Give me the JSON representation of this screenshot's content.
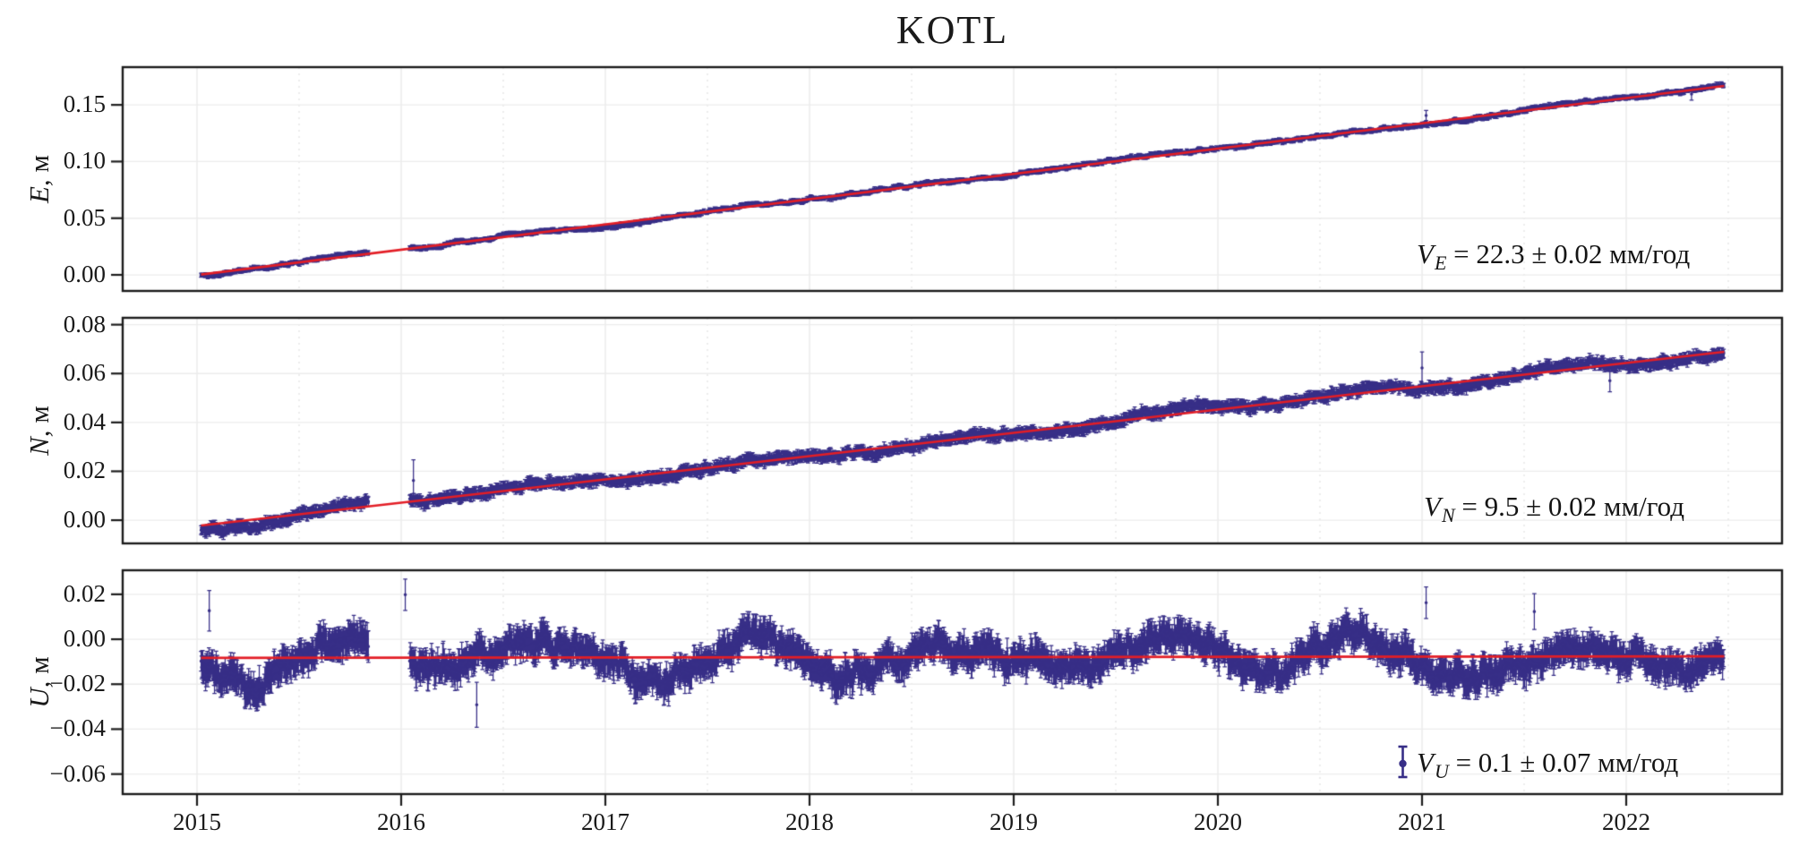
{
  "chart_data": {
    "type": "scatter",
    "title": "KOTL",
    "units_y": "м",
    "legend_position": "none",
    "grid": {
      "horizontal": true,
      "vertical_years": true,
      "vertical_half_years_dotted": true
    },
    "colors": {
      "data": "#372e87",
      "trend": "#e31e26",
      "grid_h": "#ececec",
      "grid_v": "#e6e6e6",
      "grid_v_dot": "#e2e2e2",
      "axis": "#1c1c1c"
    },
    "x": {
      "t_start": 2015.02,
      "t_end": 2022.48,
      "axis_min": 2014.64,
      "axis_max": 2022.76,
      "gap": [
        2015.84,
        2016.04
      ],
      "ticks": [
        {
          "v": 2015,
          "label": "2015"
        },
        {
          "v": 2016,
          "label": "2016"
        },
        {
          "v": 2017,
          "label": "2017"
        },
        {
          "v": 2018,
          "label": "2018"
        },
        {
          "v": 2019,
          "label": "2019"
        },
        {
          "v": 2020,
          "label": "2020"
        },
        {
          "v": 2021,
          "label": "2021"
        },
        {
          "v": 2022,
          "label": "2022"
        }
      ]
    },
    "panels": [
      {
        "component": "E",
        "ylabel": {
          "letter": "E,",
          "unit": " м"
        },
        "ylim": [
          -0.0142,
          0.1833
        ],
        "yticks": [
          {
            "v": 0.0,
            "label": "0.00"
          },
          {
            "v": 0.05,
            "label": "0.05"
          },
          {
            "v": 0.1,
            "label": "0.10"
          },
          {
            "v": 0.15,
            "label": "0.15"
          }
        ],
        "trend": {
          "start_value": 0.0003,
          "end_value": 0.1667
        },
        "velocity": {
          "var": "V",
          "sub": "E",
          "rest": " = 22.3 ± 0.02 мм/год",
          "value": 22.3,
          "sigma": 0.02,
          "units": "мм/год"
        },
        "noise": {
          "seasonal": 0.001,
          "lf": 0.0012,
          "white": 0.001,
          "err": 0.0016,
          "err_var": 0.0008,
          "seasonal_mod": 0
        },
        "outliers": [
          {
            "t": 2021.02,
            "dy": 0.0065,
            "err": 0.0045
          },
          {
            "t": 2022.32,
            "dy": -0.0035,
            "err": 0.0055
          }
        ],
        "seed": 101
      },
      {
        "component": "N",
        "ylabel": {
          "letter": "N,",
          "unit": " м"
        },
        "ylim": [
          -0.0095,
          0.0828
        ],
        "yticks": [
          {
            "v": 0.0,
            "label": "0.00"
          },
          {
            "v": 0.02,
            "label": "0.02"
          },
          {
            "v": 0.04,
            "label": "0.04"
          },
          {
            "v": 0.06,
            "label": "0.06"
          },
          {
            "v": 0.08,
            "label": "0.08"
          }
        ],
        "trend": {
          "start_value": -0.0022,
          "end_value": 0.0689
        },
        "velocity": {
          "var": "V",
          "sub": "N",
          "rest": " = 9.5 ± 0.02 мм/год",
          "value": 9.5,
          "sigma": 0.02,
          "units": "мм/год"
        },
        "noise": {
          "seasonal": 0.0013,
          "lf": 0.0014,
          "white": 0.0011,
          "err": 0.0018,
          "err_var": 0.0009,
          "seasonal_mod": 0
        },
        "outliers": [
          {
            "t": 2016.06,
            "dy": 0.0085,
            "err": 0.0085
          },
          {
            "t": 2021.0,
            "dy": 0.0075,
            "err": 0.0065
          },
          {
            "t": 2021.92,
            "dy": -0.0065,
            "err": 0.0045
          }
        ],
        "seed": 202
      },
      {
        "component": "U",
        "ylabel": {
          "letter": "U,",
          "unit": " м"
        },
        "ylim": [
          -0.0689,
          0.0307
        ],
        "yticks": [
          {
            "v": 0.02,
            "label": "0.02"
          },
          {
            "v": 0.0,
            "label": "0.00"
          },
          {
            "v": -0.02,
            "label": "−0.02"
          },
          {
            "v": -0.04,
            "label": "−0.04"
          },
          {
            "v": -0.06,
            "label": "−0.06"
          }
        ],
        "trend": {
          "start_value": -0.0083,
          "end_value": -0.0076
        },
        "velocity": {
          "var": "V",
          "sub": "U",
          "rest": " = 0.1 ± 0.07 мм/год",
          "value": 0.1,
          "sigma": 0.07,
          "units": "мм/год"
        },
        "noise": {
          "seasonal": 0.0072,
          "lf": 0.0034,
          "white": 0.0042,
          "err": 0.0052,
          "err_var": 0.0022,
          "seasonal_mod": 0.45
        },
        "outliers": [
          {
            "t": 2015.06,
            "dy": 0.021,
            "err": 0.009
          },
          {
            "t": 2016.02,
            "dy": 0.028,
            "err": 0.007
          },
          {
            "t": 2016.37,
            "dy": -0.021,
            "err": 0.01
          },
          {
            "t": 2021.02,
            "dy": 0.024,
            "err": 0.007
          },
          {
            "t": 2021.55,
            "dy": 0.02,
            "err": 0.008
          }
        ],
        "seed": 303
      }
    ]
  }
}
